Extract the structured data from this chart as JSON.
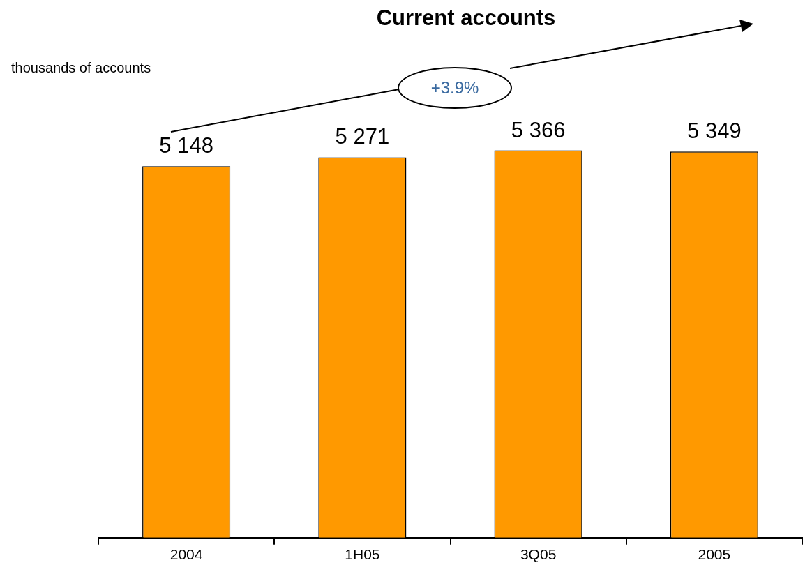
{
  "chart_data": {
    "type": "bar",
    "title": "Current accounts",
    "categories": [
      "2004",
      "1H05",
      "3Q05",
      "2005"
    ],
    "values": [
      5148,
      5271,
      5366,
      5349
    ],
    "value_labels": [
      "5 148",
      "5 271",
      "5 366",
      "5 349"
    ],
    "color": "#ff9900",
    "relative": false,
    "grid": false,
    "legend": false,
    "annotations": [
      "thousands of accounts",
      "+3.9%"
    ]
  }
}
